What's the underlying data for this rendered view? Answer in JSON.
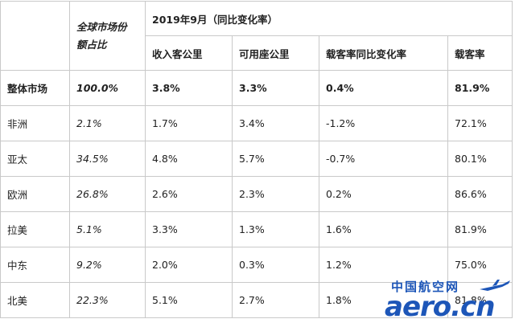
{
  "table": {
    "share_header": "全球市场份额占比",
    "period_header": "2019年9月（同比变化率）",
    "sub_headers": [
      "收入客公里",
      "可用座公里",
      "载客率同比变化率",
      "载客率"
    ],
    "total_row": {
      "region": "整体市场",
      "share": "100.0%",
      "rpk": "3.8%",
      "ask": "3.3%",
      "plf_change": "0.4%",
      "plf": "81.9%"
    },
    "rows": [
      {
        "region": "非洲",
        "share": "2.1%",
        "rpk": "1.7%",
        "ask": "3.4%",
        "plf_change": "-1.2%",
        "plf": "72.1%"
      },
      {
        "region": "亚太",
        "share": "34.5%",
        "rpk": "4.8%",
        "ask": "5.7%",
        "plf_change": "-0.7%",
        "plf": "80.1%"
      },
      {
        "region": "欧洲",
        "share": "26.8%",
        "rpk": "2.6%",
        "ask": "2.3%",
        "plf_change": "0.2%",
        "plf": "86.6%"
      },
      {
        "region": "拉美",
        "share": "5.1%",
        "rpk": "3.3%",
        "ask": "1.3%",
        "plf_change": "1.6%",
        "plf": "81.9%"
      },
      {
        "region": "中东",
        "share": "9.2%",
        "rpk": "2.0%",
        "ask": "0.3%",
        "plf_change": "1.2%",
        "plf": "75.0%"
      },
      {
        "region": "北美",
        "share": "22.3%",
        "rpk": "5.1%",
        "ask": "2.7%",
        "plf_change": "1.8%",
        "plf": "81.8%"
      }
    ]
  },
  "watermark": {
    "cn": "中国航空网",
    "en": "aero.cn",
    "icon": "airplane-icon",
    "color": "#1d56b8"
  }
}
